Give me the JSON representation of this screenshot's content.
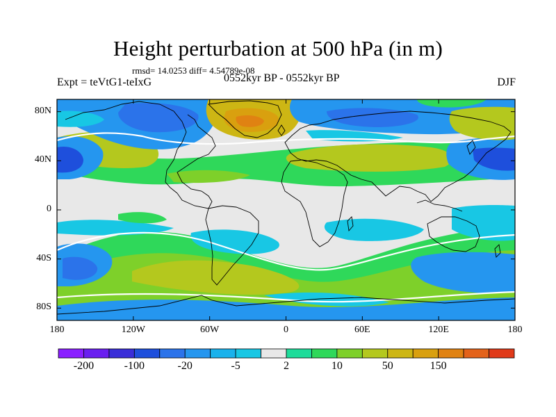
{
  "figure": {
    "title": "Height perturbation at 500 hPa (in m)",
    "stats": "rmsd= 14.0253 diff= 4.54789e-08",
    "experiment": "Expt = teVtG1-teIxG",
    "period": "0552kyr BP - 0552kyr BP",
    "season": "DJF"
  },
  "map": {
    "projection": "cylindrical-equidistant",
    "lon_range": [
      -180,
      180
    ],
    "lat_range": [
      -90,
      90
    ],
    "lat_ticks": [
      {
        "value": 80,
        "label": "80N"
      },
      {
        "value": 40,
        "label": "40N"
      },
      {
        "value": 0,
        "label": "0"
      },
      {
        "value": -40,
        "label": "40S"
      },
      {
        "value": -80,
        "label": "80S"
      }
    ],
    "lon_ticks": [
      {
        "value": -180,
        "label": "180"
      },
      {
        "value": -120,
        "label": "120W"
      },
      {
        "value": -60,
        "label": "60W"
      },
      {
        "value": 0,
        "label": "0"
      },
      {
        "value": 60,
        "label": "60E"
      },
      {
        "value": 120,
        "label": "120E"
      },
      {
        "value": 180,
        "label": "180"
      }
    ]
  },
  "colorbar": {
    "colors": [
      "#8a1fff",
      "#6a1ff0",
      "#3a2ed8",
      "#1e4fdc",
      "#2b73ea",
      "#2596ef",
      "#1ab2ec",
      "#18c7e4",
      "#e8e8e8",
      "#1edc9a",
      "#2fd85a",
      "#7ed02a",
      "#b4c81e",
      "#cdb614",
      "#d9a00f",
      "#e08212",
      "#e3621a",
      "#e03a1a"
    ],
    "labels": [
      "-200",
      "-100",
      "-20",
      "-5",
      "2",
      "10",
      "50",
      "150"
    ],
    "label_bins": [
      1,
      3,
      5,
      7,
      9,
      11,
      13,
      15
    ]
  },
  "field_colors": {
    "neutral": "#e8e8e8",
    "green": "#2fd85a",
    "yellow_green": "#7ed02a",
    "olive": "#b4c81e",
    "gold": "#cdb614",
    "orange": "#d9a00f",
    "dark_orange": "#e08212",
    "blue": "#2596ef",
    "mid_blue": "#2b73ea",
    "deep_blue": "#1e4fdc",
    "cyan": "#18c7e4"
  }
}
